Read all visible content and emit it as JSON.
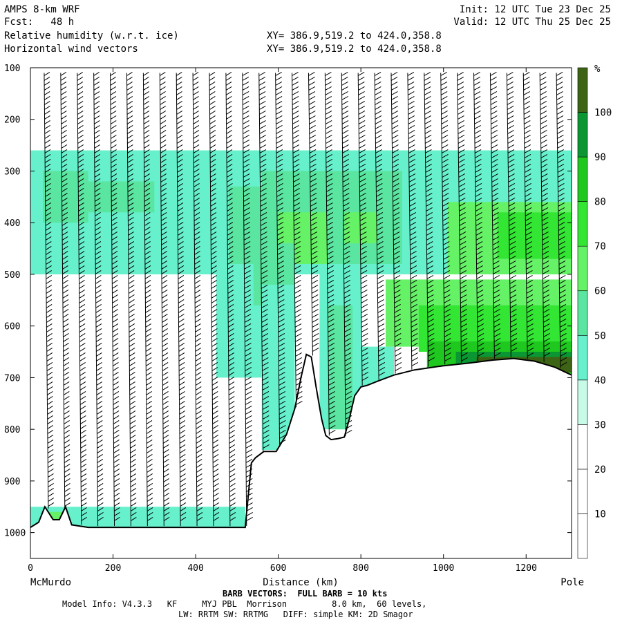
{
  "header": {
    "model": "AMPS 8-km WRF",
    "forecast": "Fcst:   48 h",
    "init": "Init: 12 UTC Tue 23 Dec 25",
    "valid": "Valid: 12 UTC Thu 25 Dec 25",
    "field1": "Relative humidity (w.r.t. ice)",
    "field2": "Horizontal wind vectors",
    "xy1": "XY= 386.9,519.2 to 424.0,358.8",
    "xy2": "XY= 386.9,519.2 to 424.0,358.8"
  },
  "footer": {
    "barb_note": "BARB VECTORS:  FULL BARB = 10 kts",
    "model_info": "Model Info: V4.3.3   KF     MYJ PBL  Morrison         8.0 km,  60 levels,",
    "physics": "LW: RRTM SW: RRTMG   DIFF: simple KM: 2D Smagor"
  },
  "chart_data": {
    "type": "heatmap",
    "title": "Relative humidity (w.r.t. ice)",
    "xlabel": "Distance (km)",
    "ylabel": "",
    "x_start_label": "McMurdo",
    "x_end_label": "Pole",
    "xlim": [
      0,
      1310
    ],
    "ylim": [
      1050,
      100
    ],
    "x_ticks": [
      0,
      200,
      400,
      600,
      800,
      1000,
      1200
    ],
    "y_ticks": [
      100,
      200,
      300,
      400,
      500,
      600,
      700,
      800,
      900,
      1000
    ],
    "colorbar": {
      "unit": "%",
      "levels": [
        10,
        20,
        30,
        40,
        50,
        60,
        70,
        80,
        90,
        100
      ],
      "colors": [
        "#ffffff",
        "#ffffff",
        "#ffffff",
        "#c8fae8",
        "#66f0cc",
        "#5ae6a0",
        "#66f266",
        "#33e633",
        "#1ec81e",
        "#0a9632",
        "#3c6414"
      ]
    },
    "terrain": {
      "x": [
        0,
        20,
        35,
        55,
        70,
        85,
        100,
        140,
        520,
        535,
        545,
        565,
        595,
        620,
        640,
        655,
        668,
        680,
        692,
        705,
        715,
        728,
        745,
        760,
        772,
        785,
        800,
        815,
        840,
        880,
        930,
        1000,
        1060,
        1120,
        1170,
        1220,
        1270,
        1310
      ],
      "pressure": [
        990,
        980,
        950,
        975,
        975,
        950,
        985,
        990,
        990,
        865,
        855,
        843,
        843,
        810,
        760,
        700,
        655,
        660,
        720,
        780,
        812,
        820,
        818,
        815,
        780,
        735,
        718,
        715,
        707,
        695,
        685,
        677,
        672,
        666,
        663,
        668,
        680,
        695
      ]
    },
    "humidity_regions": [
      {
        "x0": 0,
        "x1": 1310,
        "p0": 260,
        "p1": 500,
        "rh": 40
      },
      {
        "x0": 30,
        "x1": 140,
        "p0": 300,
        "p1": 400,
        "rh": 50
      },
      {
        "x0": 120,
        "x1": 300,
        "p0": 320,
        "p1": 380,
        "rh": 50
      },
      {
        "x0": 480,
        "x1": 900,
        "p0": 330,
        "p1": 480,
        "rh": 50
      },
      {
        "x0": 560,
        "x1": 900,
        "p0": 300,
        "p1": 360,
        "rh": 50
      },
      {
        "x0": 600,
        "x1": 720,
        "p0": 380,
        "p1": 480,
        "rh": 60
      },
      {
        "x0": 760,
        "x1": 840,
        "p0": 380,
        "p1": 440,
        "rh": 60
      },
      {
        "x0": 1010,
        "x1": 1310,
        "p0": 360,
        "p1": 500,
        "rh": 60
      },
      {
        "x0": 1130,
        "x1": 1310,
        "p0": 380,
        "p1": 470,
        "rh": 70
      },
      {
        "x0": 860,
        "x1": 1310,
        "p0": 510,
        "p1": 640,
        "rh": 60
      },
      {
        "x0": 940,
        "x1": 1310,
        "p0": 560,
        "p1": 650,
        "rh": 70
      },
      {
        "x0": 960,
        "x1": 1310,
        "p0": 630,
        "p1": 700,
        "rh": 80
      },
      {
        "x0": 1030,
        "x1": 1310,
        "p0": 650,
        "p1": 690,
        "rh": 90
      },
      {
        "x0": 1080,
        "x1": 1310,
        "p0": 660,
        "p1": 690,
        "rh": 100
      },
      {
        "x0": 450,
        "x1": 560,
        "p0": 500,
        "p1": 700,
        "rh": 40
      },
      {
        "x0": 540,
        "x1": 640,
        "p0": 440,
        "p1": 560,
        "rh": 50
      },
      {
        "x0": 560,
        "x1": 640,
        "p0": 520,
        "p1": 840,
        "rh": 40
      },
      {
        "x0": 700,
        "x1": 800,
        "p0": 480,
        "p1": 800,
        "rh": 40
      },
      {
        "x0": 720,
        "x1": 780,
        "p0": 560,
        "p1": 800,
        "rh": 50
      },
      {
        "x0": 780,
        "x1": 880,
        "p0": 640,
        "p1": 730,
        "rh": 40
      },
      {
        "x0": 0,
        "x1": 520,
        "p0": 950,
        "p1": 990,
        "rh": 40
      },
      {
        "x0": 30,
        "x1": 90,
        "p0": 960,
        "p1": 990,
        "rh": 60
      }
    ]
  }
}
